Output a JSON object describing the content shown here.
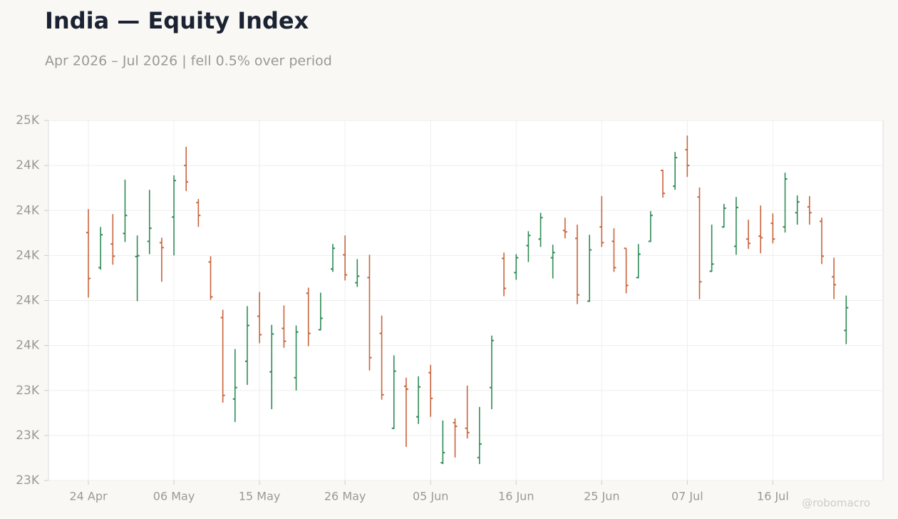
{
  "chart_data": {
    "type": "ohlc",
    "title": "India — Equity Index",
    "subtitle": "Apr 2026 – Jul 2026 | fell 0.5% over period",
    "credit": "@robomacro",
    "categories": [
      "24 Apr",
      null,
      null,
      null,
      null,
      null,
      null,
      "06 May",
      null,
      null,
      null,
      null,
      null,
      null,
      "15 May",
      null,
      null,
      null,
      null,
      null,
      null,
      "26 May",
      null,
      null,
      null,
      null,
      null,
      null,
      "05 Jun",
      null,
      null,
      null,
      null,
      null,
      null,
      "16 Jun",
      null,
      null,
      null,
      null,
      null,
      null,
      "25 Jun",
      null,
      null,
      null,
      null,
      null,
      null,
      "07 Jul",
      null,
      null,
      null,
      null,
      null,
      null,
      "16 Jul",
      null,
      null,
      null,
      null,
      null,
      null
    ],
    "open": [
      24102,
      23946,
      24051,
      24098,
      23995,
      24063,
      24057,
      24171,
      24400,
      24235,
      23971,
      23724,
      23362,
      23530,
      23730,
      23483,
      23676,
      23457,
      23832,
      23670,
      23940,
      24003,
      23879,
      23902,
      23654,
      23232,
      23419,
      23283,
      23479,
      23079,
      23257,
      23232,
      23102,
      23413,
      23987,
      23924,
      24044,
      24073,
      23990,
      24111,
      24076,
      23797,
      24127,
      24063,
      24032,
      23902,
      24063,
      24378,
      24308,
      24470,
      24260,
      23930,
      24127,
      24041,
      24073,
      24086,
      24143,
      24127,
      24190,
      24216,
      24152,
      23905,
      23667
    ],
    "high": [
      24206,
      24127,
      24184,
      24337,
      24089,
      24292,
      24079,
      24356,
      24483,
      24251,
      23997,
      23759,
      23584,
      23775,
      23838,
      23692,
      23778,
      23689,
      23857,
      23835,
      24051,
      24089,
      23984,
      24003,
      23733,
      23556,
      23457,
      23463,
      23514,
      23267,
      23276,
      23422,
      23327,
      23644,
      24013,
      24006,
      24108,
      24190,
      24048,
      24168,
      24137,
      24092,
      24264,
      24121,
      24032,
      24051,
      24197,
      24381,
      24460,
      24533,
      24302,
      24137,
      24229,
      24260,
      24159,
      24222,
      24187,
      24368,
      24267,
      24264,
      24168,
      23990,
      23822
    ],
    "low": [
      23813,
      23937,
      23959,
      24060,
      23797,
      24006,
      23883,
      24000,
      24286,
      24127,
      23803,
      23346,
      23260,
      23425,
      23610,
      23317,
      23590,
      23400,
      23597,
      23667,
      23927,
      23889,
      23860,
      23489,
      23359,
      23229,
      23149,
      23251,
      23283,
      23073,
      23102,
      23187,
      23073,
      23317,
      23819,
      23892,
      23971,
      24038,
      23898,
      24076,
      23784,
      23794,
      24038,
      23927,
      23832,
      23898,
      24060,
      24257,
      24292,
      24349,
      23806,
      23927,
      24124,
      24003,
      24029,
      24010,
      24054,
      24102,
      24137,
      24137,
      23962,
      23806,
      23606
    ],
    "close": [
      23898,
      24092,
      23997,
      24178,
      23999,
      24121,
      24035,
      24333,
      24327,
      24178,
      23816,
      23378,
      23413,
      23689,
      23648,
      23651,
      23619,
      23660,
      23654,
      23721,
      24032,
      23914,
      23908,
      23546,
      23381,
      23486,
      23406,
      23416,
      23365,
      23124,
      23241,
      23213,
      23162,
      23622,
      23854,
      23990,
      24089,
      24168,
      24013,
      24105,
      23825,
      24025,
      24057,
      23946,
      23867,
      24006,
      24178,
      24276,
      24435,
      24400,
      23883,
      23962,
      24210,
      24213,
      24054,
      24079,
      24073,
      24340,
      24238,
      24190,
      23997,
      23870,
      23768
    ],
    "colors": {
      "up": "#2e8b57",
      "down": "#c8643c"
    },
    "ylim": [
      23000,
      24600
    ],
    "yticks": [
      {
        "value": 23000,
        "label": "23K"
      },
      {
        "value": 23200,
        "label": "23K"
      },
      {
        "value": 23400,
        "label": "23K"
      },
      {
        "value": 23600,
        "label": "24K"
      },
      {
        "value": 23800,
        "label": "24K"
      },
      {
        "value": 24000,
        "label": "24K"
      },
      {
        "value": 24200,
        "label": "24K"
      },
      {
        "value": 24400,
        "label": "24K"
      },
      {
        "value": 24600,
        "label": "25K"
      }
    ],
    "grid": true
  }
}
